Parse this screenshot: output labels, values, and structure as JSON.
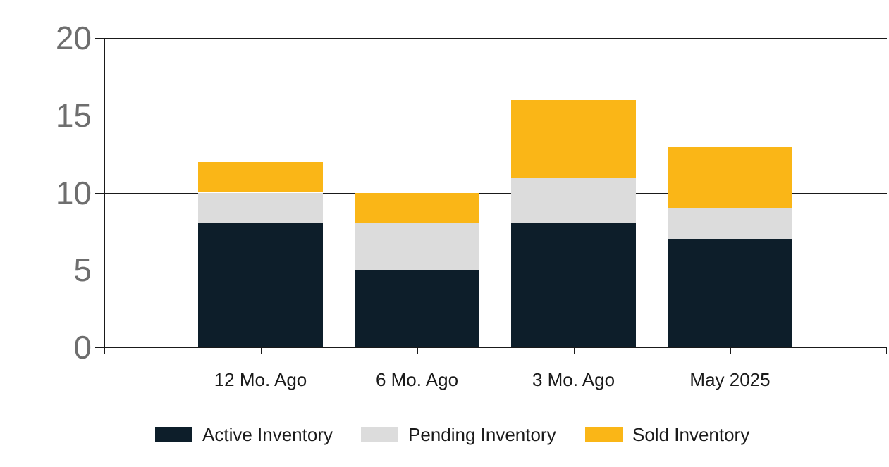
{
  "chart_data": {
    "type": "bar",
    "stacked": true,
    "title": "",
    "xlabel": "",
    "ylabel": "",
    "categories": [
      "12 Mo. Ago",
      "6 Mo. Ago",
      "3 Mo. Ago",
      "May 2025"
    ],
    "series": [
      {
        "name": "Active Inventory",
        "color": "#0d1e2a",
        "values": [
          8,
          5,
          8,
          7
        ]
      },
      {
        "name": "Pending Inventory",
        "color": "#dcdcdc",
        "values": [
          2,
          3,
          3,
          2
        ]
      },
      {
        "name": "Sold Inventory",
        "color": "#fab617",
        "values": [
          2,
          2,
          5,
          4
        ]
      }
    ],
    "totals": [
      12,
      10,
      16,
      13
    ],
    "ylim": [
      0,
      20
    ],
    "y_ticks": [
      0,
      5,
      10,
      15,
      20
    ],
    "grid": true,
    "legend_position": "bottom"
  },
  "colors": {
    "background": "#ffffff",
    "axis_line": "#1a1a1a",
    "gridline": "#1a1a1a",
    "y_tick_label": "#6e6e6e",
    "x_tick_label": "#1a1a1a",
    "legend_label": "#1a1a1a"
  }
}
